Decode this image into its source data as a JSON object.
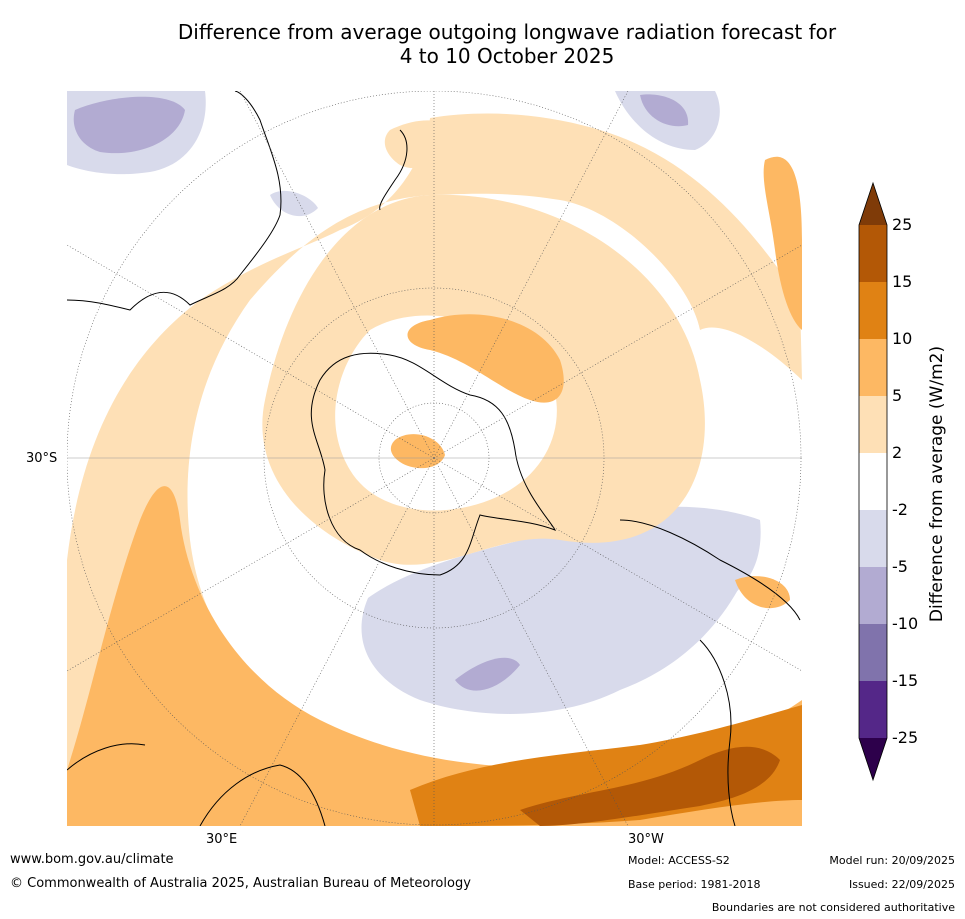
{
  "title": {
    "line1": "Difference from average outgoing longwave radiation forecast for",
    "line2": "4 to 10 October 2025"
  },
  "map": {
    "projection": "south polar stereographic",
    "lat_label": "30°S",
    "lon_labels": [
      "30°E",
      "30°W"
    ]
  },
  "colorbar": {
    "label": "Difference from average (W/m2)",
    "ticks": [
      "25",
      "15",
      "10",
      "5",
      "2",
      "-2",
      "-5",
      "-10",
      "-15",
      "-25"
    ],
    "colors": {
      "over": "#7f3b08",
      "b15_25": "#b35806",
      "b10_15": "#e08214",
      "b5_10": "#fdb863",
      "b2_5": "#fee0b6",
      "bneg2_2": "#ffffff",
      "bneg5_neg2": "#d8daeb",
      "bneg10_neg5": "#b2abd2",
      "bneg15_neg10": "#8073ac",
      "bneg25_neg15": "#542788",
      "under": "#2d004b"
    }
  },
  "footer": {
    "website": "www.bom.gov.au/climate",
    "copyright": "© Commonwealth of Australia 2025, Australian Bureau of Meteorology",
    "model": "Model: ACCESS-S2",
    "base_period": "Base period: 1981-2018",
    "model_run": "Model run: 20/09/2025",
    "issued": "Issued: 22/09/2025",
    "disclaimer": "Boundaries are not considered authoritative"
  }
}
